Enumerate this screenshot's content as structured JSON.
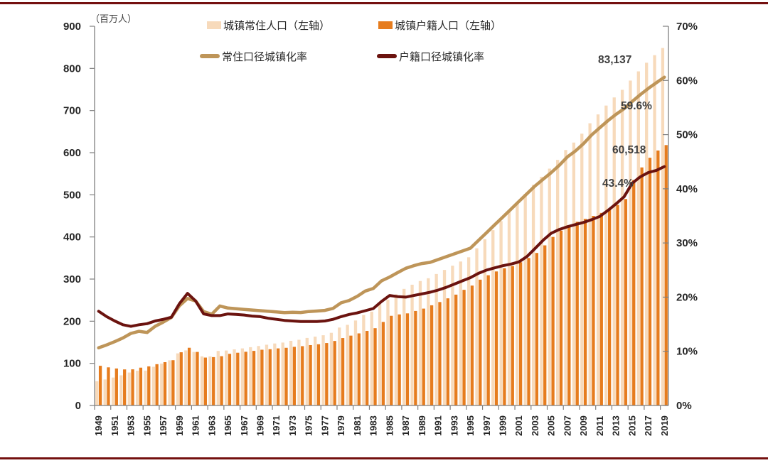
{
  "unit_note": "left axis unit label shown on chart",
  "chart_data": {
    "type": "bar",
    "subtype": "combo-bar-line-dual-axis",
    "title": "",
    "unit_label": "（百万人）",
    "xlabel": "",
    "ylabel_left": "百万人",
    "ylabel_right": "%",
    "grid": false,
    "legend_position": "top",
    "left_axis": {
      "min": 0,
      "max": 900,
      "step": 100,
      "ticks": [
        "0",
        "100",
        "200",
        "300",
        "400",
        "500",
        "600",
        "700",
        "800",
        "900"
      ]
    },
    "right_axis": {
      "min": 0,
      "max": 70,
      "step": 10,
      "ticks": [
        "0%",
        "10%",
        "20%",
        "30%",
        "40%",
        "50%",
        "60%",
        "70%"
      ]
    },
    "x_tick_labels": [
      "1949",
      "1951",
      "1953",
      "1955",
      "1957",
      "1959",
      "1961",
      "1963",
      "1965",
      "1967",
      "1969",
      "1971",
      "1973",
      "1975",
      "1977",
      "1979",
      "1981",
      "1983",
      "1985",
      "1987",
      "1989",
      "1991",
      "1993",
      "1995",
      "1997",
      "1999",
      "2001",
      "2003",
      "2005",
      "2007",
      "2009",
      "2011",
      "2013",
      "2015",
      "2017",
      "2019"
    ],
    "categories": [
      1949,
      1950,
      1951,
      1952,
      1953,
      1954,
      1955,
      1956,
      1957,
      1958,
      1959,
      1960,
      1961,
      1962,
      1963,
      1964,
      1965,
      1966,
      1967,
      1968,
      1969,
      1970,
      1971,
      1972,
      1973,
      1974,
      1975,
      1976,
      1977,
      1978,
      1979,
      1980,
      1981,
      1982,
      1983,
      1984,
      1985,
      1986,
      1987,
      1988,
      1989,
      1990,
      1991,
      1992,
      1993,
      1994,
      1995,
      1996,
      1997,
      1998,
      1999,
      2000,
      2001,
      2002,
      2003,
      2004,
      2005,
      2006,
      2007,
      2008,
      2009,
      2010,
      2011,
      2012,
      2013,
      2014,
      2015,
      2016,
      2017,
      2018,
      2019
    ],
    "series": [
      {
        "name": "城镇常住人口（左轴）",
        "type": "bar",
        "axis": "left",
        "color": "#F7DABB",
        "values": [
          57.65,
          61.69,
          66.32,
          71.63,
          78.26,
          82.49,
          82.85,
          91.85,
          99.49,
          107.21,
          123.71,
          130.73,
          127.07,
          116.59,
          116.46,
          129.5,
          130.45,
          133.13,
          135.48,
          138.38,
          141.17,
          144.24,
          147.11,
          149.35,
          153.45,
          155.95,
          160.3,
          163.41,
          166.69,
          172.45,
          184.95,
          191.4,
          201.71,
          214.8,
          222.74,
          240.17,
          250.94,
          263.66,
          276.74,
          286.61,
          295.4,
          301.95,
          312.03,
          321.75,
          331.73,
          341.69,
          351.74,
          373.04,
          394.49,
          416.08,
          437.48,
          459.06,
          480.64,
          502.12,
          523.76,
          542.83,
          562.12,
          582.88,
          606.33,
          624.03,
          645.12,
          669.78,
          690.79,
          711.82,
          731.11,
          749.16,
          771.16,
          792.98,
          813.47,
          831.37,
          848.43
        ]
      },
      {
        "name": "城镇户籍人口（左轴）",
        "type": "bar",
        "axis": "left",
        "color": "#E67C1E",
        "values": [
          94.2,
          90.5,
          87.8,
          85.6,
          85.8,
          89.8,
          92.8,
          98,
          102.8,
          107.5,
          126.3,
          137,
          127.1,
          113.7,
          114.8,
          117,
          122.6,
          125.2,
          127.5,
          129.6,
          132.3,
          133.6,
          135.5,
          136.9,
          139.2,
          140.8,
          143.3,
          145.3,
          148.2,
          153.1,
          160,
          165.8,
          171.1,
          176.9,
          183.4,
          198.3,
          212.8,
          216.1,
          218.6,
          224.3,
          229.9,
          237.8,
          245.5,
          254.3,
          263.1,
          274.5,
          284.6,
          298.6,
          309.1,
          318.1,
          325.8,
          331,
          340,
          350,
          362,
          380,
          400,
          415,
          428,
          436,
          443,
          450,
          457,
          465,
          476,
          490,
          535,
          565,
          588,
          605.18,
          618
        ]
      },
      {
        "name": "常住口径城镇化率",
        "type": "line",
        "axis": "right",
        "color": "#BE9559",
        "values": [
          10.64,
          11.18,
          11.78,
          12.46,
          13.31,
          13.69,
          13.48,
          14.62,
          15.39,
          16.25,
          18.41,
          19.75,
          19.29,
          17.33,
          16.84,
          18.37,
          17.98,
          17.86,
          17.74,
          17.62,
          17.5,
          17.38,
          17.26,
          17.13,
          17.2,
          17.16,
          17.34,
          17.44,
          17.55,
          17.92,
          18.96,
          19.39,
          20.16,
          21.13,
          21.62,
          23.01,
          23.71,
          24.52,
          25.32,
          25.81,
          26.21,
          26.41,
          26.94,
          27.46,
          27.99,
          28.51,
          29.04,
          30.48,
          31.91,
          33.35,
          34.78,
          36.22,
          37.66,
          39.09,
          40.53,
          41.76,
          42.99,
          44.34,
          45.89,
          46.99,
          48.34,
          49.95,
          51.27,
          52.57,
          53.73,
          54.77,
          56.1,
          57.35,
          58.52,
          59.58,
          60.6
        ]
      },
      {
        "name": "户籍口径城镇化率",
        "type": "line",
        "axis": "right",
        "color": "#6B130F",
        "values": [
          17.4,
          16.4,
          15.6,
          14.9,
          14.6,
          14.9,
          15.1,
          15.6,
          15.9,
          16.3,
          18.8,
          20.7,
          19.3,
          16.9,
          16.6,
          16.6,
          16.9,
          16.8,
          16.7,
          16.5,
          16.4,
          16.1,
          15.9,
          15.7,
          15.6,
          15.5,
          15.5,
          15.5,
          15.6,
          15.9,
          16.4,
          16.8,
          17.1,
          17.5,
          17.9,
          19.2,
          20.3,
          20.1,
          20,
          20.3,
          20.6,
          20.9,
          21.3,
          21.8,
          22.4,
          23,
          23.6,
          24.4,
          25,
          25.4,
          25.8,
          26.1,
          26.5,
          27.5,
          29,
          30.5,
          31.8,
          32.5,
          33,
          33.4,
          33.8,
          34.3,
          34.9,
          36,
          37.2,
          38.5,
          41,
          42.2,
          43,
          43.4,
          44.1
        ]
      }
    ],
    "annotations": [
      {
        "text": "83,137"
      },
      {
        "text": "59.6%"
      },
      {
        "text": "60,518"
      },
      {
        "text": "43.4%"
      }
    ]
  },
  "page": {
    "top_rule_color": "#74100F",
    "bottom_rule_color": "#74100F",
    "axis_color": "#7F7F7F"
  }
}
